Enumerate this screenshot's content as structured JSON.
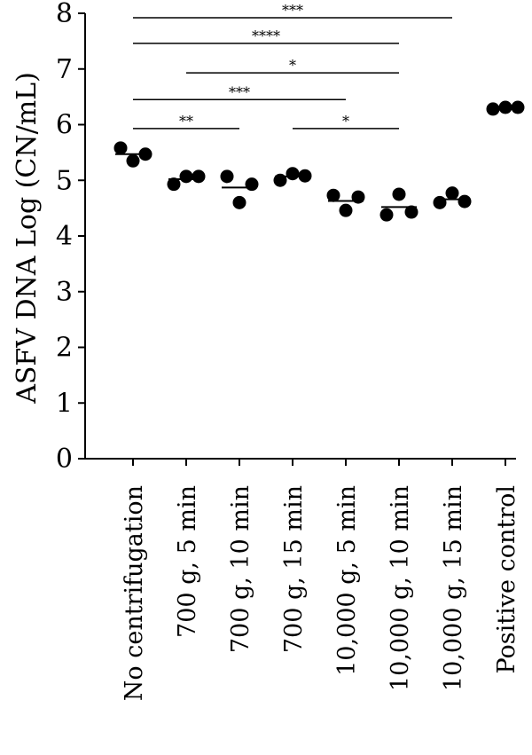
{
  "chart_data": {
    "type": "scatter",
    "title": "",
    "xlabel": "",
    "ylabel": "ASFV DNA Log (CN/mL)",
    "ylim": [
      0,
      8
    ],
    "yticks": [
      "0",
      "1",
      "2",
      "3",
      "4",
      "5",
      "6",
      "7",
      "8"
    ],
    "grid": false,
    "categories": [
      "No centrifugation",
      "700 g, 5 min",
      "700 g, 10 min",
      "700 g, 15 min",
      "10,000 g, 5 min",
      "10,000 g, 10 min",
      "10,000 g, 15 min",
      "Positive control"
    ],
    "points": [
      [
        5.58,
        5.35,
        5.47
      ],
      [
        4.93,
        5.07,
        5.07
      ],
      [
        5.07,
        4.6,
        4.93
      ],
      [
        5.0,
        5.12,
        5.08
      ],
      [
        4.73,
        4.46,
        4.7
      ],
      [
        4.38,
        4.75,
        4.43
      ],
      [
        4.6,
        4.77,
        4.62
      ],
      [
        6.28,
        6.31,
        6.31
      ]
    ],
    "means": [
      5.47,
      5.02,
      4.87,
      5.07,
      4.63,
      4.52,
      4.66,
      6.3
    ],
    "significance": [
      {
        "from": 0,
        "to": 6,
        "label": "***",
        "y": 7.92
      },
      {
        "from": 0,
        "to": 5,
        "label": "****",
        "y": 7.46
      },
      {
        "from": 1,
        "to": 5,
        "label": "*",
        "y": 6.93
      },
      {
        "from": 0,
        "to": 4,
        "label": "***",
        "y": 6.45
      },
      {
        "from": 0,
        "to": 2,
        "label": "**",
        "y": 5.93
      },
      {
        "from": 3,
        "to": 5,
        "label": "*",
        "y": 5.93
      }
    ]
  }
}
